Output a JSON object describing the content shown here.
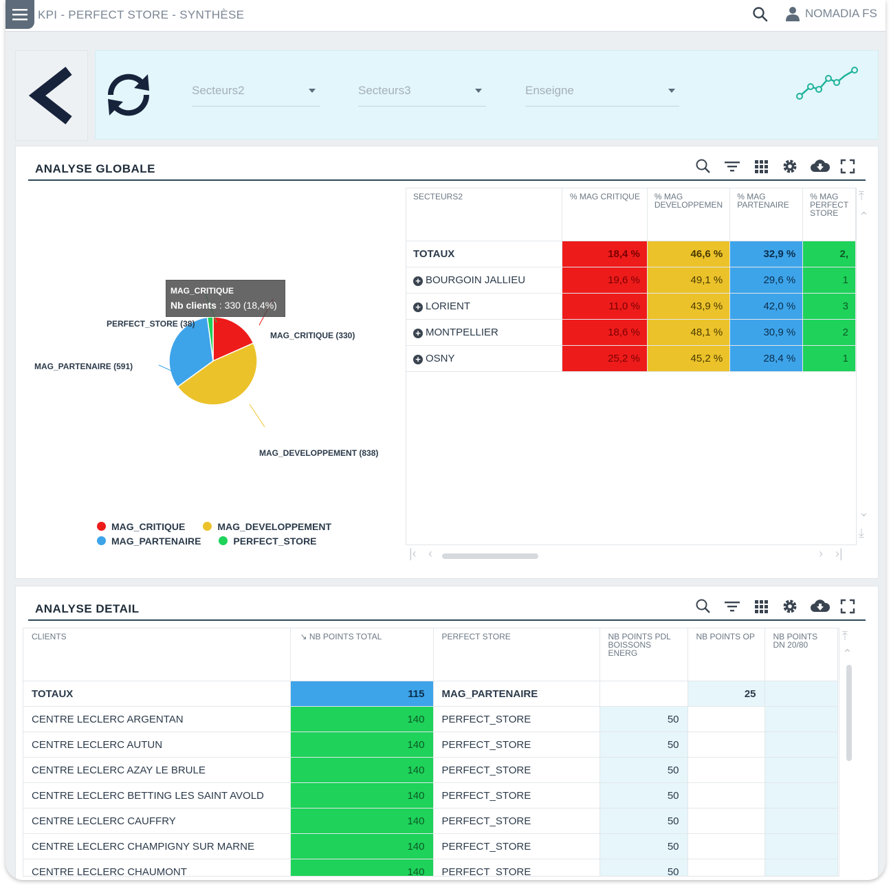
{
  "app": {
    "title": "KPI - PERFECT STORE - SYNTHÈSE",
    "user": "NOMADIA FS"
  },
  "filters": [
    {
      "label": "Secteurs2"
    },
    {
      "label": "Secteurs3"
    },
    {
      "label": "Enseigne"
    }
  ],
  "global": {
    "title": "ANALYSE GLOBALE",
    "tooltip": {
      "series": "MAG_CRITIQUE",
      "metric": "Nb clients",
      "value": " : 330 (18,4%)"
    },
    "pie_labels": {
      "perfect_store": "PERFECT_STORE (38)",
      "critique": "MAG_CRITIQUE (330)",
      "partenaire": "MAG_PARTENAIRE (591)",
      "developpement": "MAG_DEVELOPPEMENT (838)"
    },
    "legend": [
      "MAG_CRITIQUE",
      "MAG_DEVELOPPEMENT",
      "MAG_PARTENAIRE",
      "PERFECT_STORE"
    ],
    "table": {
      "headers": [
        "SECTEURS2",
        "% MAG CRITIQUE",
        "% MAG DEVELOPPEMEN",
        "% MAG PARTENAIRE",
        "% MAG PERFECT STORE"
      ],
      "rows": [
        {
          "name": "TOTAUX",
          "critique": "18,4 %",
          "dev": "46,6 %",
          "part": "32,9 %",
          "ps": "2,"
        },
        {
          "name": "BOURGOIN JALLIEU",
          "critique": "19,6 %",
          "dev": "49,1 %",
          "part": "29,6 %",
          "ps": "1"
        },
        {
          "name": "LORIENT",
          "critique": "11,0 %",
          "dev": "43,9 %",
          "part": "42,0 %",
          "ps": "3"
        },
        {
          "name": "MONTPELLIER",
          "critique": "18,6 %",
          "dev": "48,1 %",
          "part": "30,9 %",
          "ps": "2"
        },
        {
          "name": "OSNY",
          "critique": "25,2 %",
          "dev": "45,2 %",
          "part": "28,4 %",
          "ps": "1"
        }
      ]
    }
  },
  "chart_data": {
    "type": "pie",
    "categories": [
      "MAG_CRITIQUE",
      "MAG_DEVELOPPEMENT",
      "MAG_PARTENAIRE",
      "PERFECT_STORE"
    ],
    "values": [
      330,
      838,
      591,
      38
    ],
    "colors": [
      "#ee1b1b",
      "#ebc22a",
      "#3ea4ea",
      "#1ed25a"
    ],
    "legend": "bottom"
  },
  "detail": {
    "title": "ANALYSE DETAIL",
    "headers": [
      "CLIENTS",
      "NB POINTS TOTAL",
      "PERFECT STORE",
      "NB POINTS PDL BOISSONS ENERG",
      "NB POINTS OP",
      "NB POINTS DN 20/80"
    ],
    "rows": [
      {
        "client": "TOTAUX",
        "total": "115",
        "store": "MAG_PARTENAIRE",
        "pdl": "",
        "op": "25",
        "dn": ""
      },
      {
        "client": "CENTRE LECLERC ARGENTAN",
        "total": "140",
        "store": "PERFECT_STORE",
        "pdl": "50",
        "op": "",
        "dn": ""
      },
      {
        "client": "CENTRE LECLERC AUTUN",
        "total": "140",
        "store": "PERFECT_STORE",
        "pdl": "50",
        "op": "",
        "dn": ""
      },
      {
        "client": "CENTRE LECLERC AZAY LE BRULE",
        "total": "140",
        "store": "PERFECT_STORE",
        "pdl": "50",
        "op": "",
        "dn": ""
      },
      {
        "client": "CENTRE LECLERC BETTING LES SAINT AVOLD",
        "total": "140",
        "store": "PERFECT_STORE",
        "pdl": "50",
        "op": "",
        "dn": ""
      },
      {
        "client": "CENTRE LECLERC CAUFFRY",
        "total": "140",
        "store": "PERFECT_STORE",
        "pdl": "50",
        "op": "",
        "dn": ""
      },
      {
        "client": "CENTRE LECLERC CHAMPIGNY SUR MARNE",
        "total": "140",
        "store": "PERFECT_STORE",
        "pdl": "50",
        "op": "",
        "dn": ""
      },
      {
        "client": "CENTRE LECLERC CHAUMONT",
        "total": "140",
        "store": "PERFECT_STORE",
        "pdl": "50",
        "op": "",
        "dn": ""
      }
    ]
  }
}
